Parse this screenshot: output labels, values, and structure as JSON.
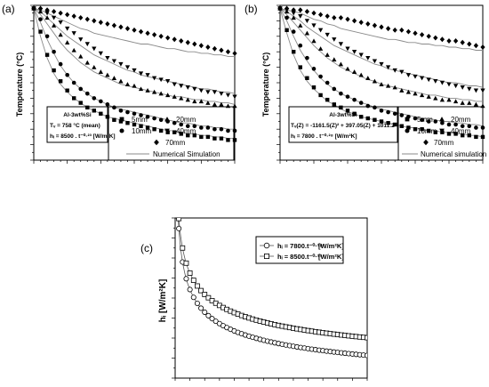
{
  "panels": [
    {
      "label": "(a)",
      "ylabel": "Temperature (°C)",
      "box_lines": [
        "Al-3wt%Si",
        "Tᵥ = 758 °C (mean)",
        "hᵢ = 8500 . t⁻⁰·²³ [W/m²K]"
      ],
      "legend": [
        "5mm",
        "20mm",
        "10mm",
        "40mm",
        "70mm"
      ],
      "sim_label": "Numerical Simulation"
    },
    {
      "label": "(b)",
      "ylabel": "Temperature (°C)",
      "box_lines": [
        "Al-3wt%Si",
        "Tᵥ(Z) = -1161.5(Z)² + 397.05(Z) + 1011.2",
        "hᵢ = 7800 . t⁻⁰·²⁸ [W/m²K]"
      ],
      "legend": [
        "5mm",
        "20mm",
        "10mm",
        "40mm",
        "70mm"
      ],
      "sim_label": "Numerical simulation"
    },
    {
      "label": "(c)",
      "ylabel": "hᵢ [W/m²K]",
      "legend_series": [
        {
          "formula": "hᵢ = 7800.t⁻⁰·²⁸",
          "unit": "[W/m²K]",
          "marker": "circle"
        },
        {
          "formula": "hᵢ = 8500.t⁻⁰·²³",
          "unit": "[W/m²K]",
          "marker": "square"
        }
      ]
    }
  ],
  "chart_data": [
    {
      "type": "scatter",
      "title": "",
      "xlabel": "",
      "ylabel": "Temperature (°C)",
      "x": [
        0,
        1,
        2,
        3,
        4,
        5,
        6,
        7,
        8,
        9,
        10,
        11,
        12,
        13,
        14,
        15,
        16,
        17,
        18,
        19,
        20,
        21,
        22,
        23,
        24,
        25,
        26,
        27,
        28,
        29,
        30
      ],
      "xlim": [
        0,
        30
      ],
      "ylim": [
        0,
        100
      ],
      "series": [
        {
          "name": "5mm",
          "marker": "square",
          "values": [
            98,
            83,
            68,
            58,
            51,
            45,
            40,
            37,
            34,
            32,
            30,
            28,
            26,
            25,
            24,
            23,
            22,
            21,
            20,
            19,
            18,
            18,
            17,
            16,
            16,
            15,
            15,
            14,
            14,
            13,
            13
          ]
        },
        {
          "name": "10mm",
          "marker": "circle",
          "values": [
            98,
            91,
            80,
            70,
            62,
            55,
            50,
            46,
            43,
            40,
            38,
            36,
            34,
            32,
            31,
            30,
            29,
            28,
            27,
            26,
            25,
            24,
            23,
            22,
            22,
            21,
            21,
            20,
            20,
            19,
            19
          ]
        },
        {
          "name": "20mm",
          "marker": "triangle-up",
          "values": [
            98,
            96,
            92,
            87,
            81,
            76,
            71,
            67,
            63,
            60,
            57,
            55,
            53,
            51,
            49,
            48,
            46,
            45,
            44,
            43,
            42,
            41,
            40,
            39,
            38,
            38,
            37,
            36,
            36,
            35,
            35
          ]
        },
        {
          "name": "40mm",
          "marker": "triangle-down",
          "values": [
            98,
            97,
            95,
            92,
            89,
            85,
            82,
            78,
            75,
            72,
            69,
            66,
            64,
            62,
            60,
            58,
            56,
            55,
            53,
            52,
            51,
            49,
            48,
            47,
            46,
            45,
            44,
            44,
            43,
            42,
            41
          ]
        },
        {
          "name": "70mm",
          "marker": "diamond",
          "values": [
            98,
            98,
            97,
            96,
            95,
            94,
            93,
            92,
            91,
            90,
            89,
            88,
            87,
            86,
            85,
            84,
            83,
            82,
            81,
            80,
            79,
            78,
            77,
            76,
            75,
            74,
            73,
            72,
            71,
            70,
            69
          ]
        }
      ],
      "simulation": [
        [
          98,
          80,
          66,
          56,
          49,
          44,
          40,
          37,
          34,
          32,
          30,
          28,
          27,
          26,
          25,
          24,
          23,
          22,
          21,
          20,
          19,
          19,
          18,
          17,
          17,
          16,
          16,
          15,
          15,
          14,
          14
        ],
        [
          98,
          89,
          78,
          69,
          61,
          55,
          50,
          46,
          43,
          40,
          38,
          36,
          34,
          33,
          32,
          31,
          30,
          29,
          28,
          27,
          26,
          25,
          24,
          24,
          23,
          22,
          22,
          21,
          21,
          20,
          20
        ],
        [
          98,
          94,
          88,
          82,
          76,
          71,
          67,
          63,
          60,
          57,
          55,
          53,
          51,
          49,
          48,
          47,
          46,
          45,
          44,
          43,
          42,
          41,
          41,
          40,
          39,
          39,
          38,
          38,
          37,
          37,
          36
        ],
        [
          98,
          96,
          92,
          88,
          84,
          80,
          77,
          74,
          71,
          68,
          66,
          64,
          62,
          60,
          58,
          57,
          55,
          54,
          53,
          52,
          51,
          50,
          49,
          48,
          47,
          46,
          46,
          45,
          44,
          44,
          43
        ],
        [
          98,
          97,
          95,
          93,
          91,
          89,
          87,
          85,
          84,
          82,
          81,
          80,
          79,
          78,
          77,
          76,
          75,
          75,
          74,
          73,
          72,
          72,
          71,
          70,
          70,
          69,
          69,
          68,
          68,
          67,
          67
        ]
      ],
      "grid": false,
      "legend_position": "bottom-right"
    },
    {
      "type": "scatter",
      "title": "",
      "xlabel": "",
      "ylabel": "Temperature (°C)",
      "x": [
        0,
        1,
        2,
        3,
        4,
        5,
        6,
        7,
        8,
        9,
        10,
        11,
        12,
        13,
        14,
        15,
        16,
        17,
        18,
        19,
        20,
        21,
        22,
        23,
        24,
        25,
        26,
        27,
        28,
        29,
        30
      ],
      "xlim": [
        0,
        30
      ],
      "ylim": [
        0,
        100
      ],
      "series": [
        {
          "name": "5mm",
          "marker": "square",
          "values": [
            98,
            84,
            70,
            60,
            53,
            47,
            42,
            39,
            36,
            34,
            32,
            30,
            28,
            27,
            26,
            25,
            24,
            23,
            22,
            21,
            20,
            20,
            19,
            18,
            18,
            17,
            17,
            16,
            16,
            15,
            15
          ]
        },
        {
          "name": "10mm",
          "marker": "circle",
          "values": [
            98,
            92,
            83,
            74,
            66,
            59,
            54,
            50,
            46,
            43,
            41,
            39,
            37,
            35,
            34,
            32,
            31,
            30,
            29,
            28,
            27,
            26,
            25,
            25,
            24,
            23,
            23,
            22,
            22,
            21,
            21
          ]
        },
        {
          "name": "20mm",
          "marker": "triangle-up",
          "values": [
            98,
            96,
            92,
            87,
            82,
            77,
            72,
            68,
            65,
            62,
            59,
            57,
            55,
            53,
            51,
            49,
            48,
            47,
            45,
            44,
            43,
            42,
            41,
            40,
            39,
            39,
            38,
            37,
            37,
            36,
            35
          ]
        },
        {
          "name": "40mm",
          "marker": "triangle-down",
          "values": [
            98,
            97,
            95,
            93,
            90,
            87,
            84,
            81,
            78,
            75,
            72,
            70,
            68,
            66,
            64,
            62,
            60,
            58,
            57,
            55,
            54,
            53,
            52,
            51,
            50,
            49,
            48,
            47,
            46,
            45,
            45
          ]
        },
        {
          "name": "70mm",
          "marker": "diamond",
          "values": [
            98,
            98,
            97,
            97,
            96,
            95,
            94,
            93,
            92,
            92,
            91,
            90,
            89,
            88,
            87,
            86,
            85,
            84,
            84,
            83,
            82,
            81,
            80,
            79,
            78,
            77,
            77,
            76,
            75,
            74,
            73
          ]
        }
      ],
      "simulation": [
        [
          98,
          82,
          68,
          58,
          51,
          46,
          42,
          38,
          36,
          33,
          31,
          30,
          28,
          27,
          26,
          25,
          24,
          23,
          22,
          21,
          21,
          20,
          19,
          19,
          18,
          18,
          17,
          17,
          16,
          16,
          15
        ],
        [
          98,
          90,
          80,
          71,
          64,
          58,
          53,
          49,
          46,
          43,
          41,
          39,
          37,
          36,
          34,
          33,
          32,
          31,
          30,
          29,
          28,
          27,
          27,
          26,
          25,
          25,
          24,
          24,
          23,
          23,
          22
        ],
        [
          98,
          94,
          89,
          84,
          79,
          74,
          70,
          66,
          63,
          60,
          58,
          56,
          54,
          52,
          51,
          49,
          48,
          47,
          46,
          45,
          44,
          43,
          42,
          42,
          41,
          40,
          40,
          39,
          39,
          38,
          38
        ],
        [
          98,
          96,
          93,
          90,
          86,
          83,
          80,
          77,
          74,
          72,
          70,
          68,
          66,
          64,
          62,
          61,
          59,
          58,
          57,
          56,
          55,
          54,
          53,
          52,
          51,
          50,
          50,
          49,
          48,
          48,
          47
        ],
        [
          98,
          97,
          96,
          95,
          93,
          91,
          90,
          88,
          87,
          85,
          84,
          83,
          82,
          81,
          80,
          79,
          78,
          78,
          77,
          76,
          76,
          75,
          75,
          74,
          74,
          73,
          73,
          72,
          72,
          71,
          71
        ]
      ],
      "grid": false,
      "legend_position": "bottom-right"
    },
    {
      "type": "line",
      "title": "",
      "xlabel": "",
      "ylabel": "hᵢ [W/m²K]",
      "x": [
        0.5,
        1,
        1.5,
        2,
        2.5,
        3,
        3.5,
        4,
        4.5,
        5,
        5.5,
        6,
        6.5,
        7,
        7.5,
        8,
        8.5,
        9,
        9.5,
        10,
        10.5,
        11,
        11.5,
        12,
        12.5,
        13,
        13.5,
        14,
        14.5,
        15,
        15.5,
        16,
        16.5,
        17,
        17.5,
        18,
        18.5,
        19,
        19.5,
        20,
        20.5,
        21,
        21.5,
        22,
        22.5,
        23,
        23.5,
        24,
        24.5,
        25,
        25.5,
        26
      ],
      "xlim": [
        0,
        26
      ],
      "ylim": [
        2000,
        10000
      ],
      "series": [
        {
          "name": "hᵢ = 7800.t⁻⁰·²⁸",
          "marker": "circle",
          "formula_coef": 7800,
          "formula_exp": -0.28
        },
        {
          "name": "hᵢ = 8500.t⁻⁰·²³",
          "marker": "square",
          "formula_coef": 8500,
          "formula_exp": -0.23
        }
      ],
      "grid": false,
      "legend_position": "top-right"
    }
  ]
}
